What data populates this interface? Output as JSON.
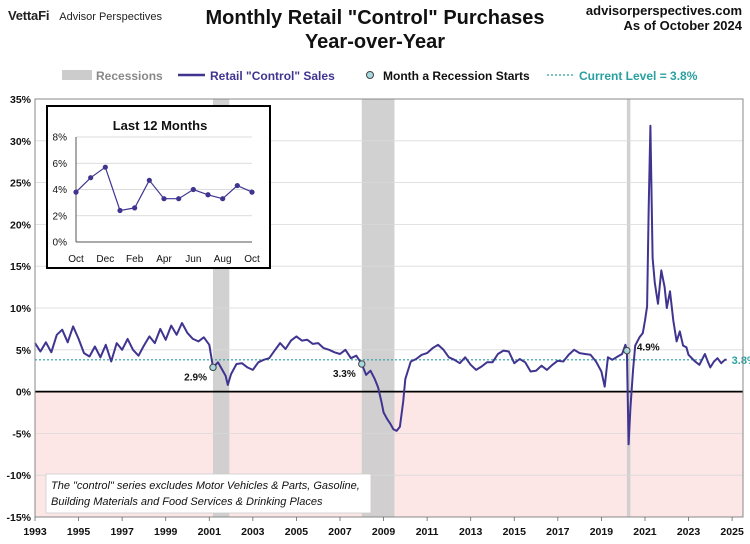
{
  "header": {
    "logo": "VettaFi",
    "logo_sub": "Advisor Perspectives",
    "title_line1": "Monthly Retail \"Control\" Purchases",
    "title_line2": "Year-over-Year",
    "site": "advisorperspectives.com",
    "asof": "As of October 2024"
  },
  "legend": {
    "recessions": "Recessions",
    "series": "Retail \"Control\" Sales",
    "recession_start": "Month a Recession Starts",
    "current": "Current Level = 3.8%"
  },
  "colors": {
    "line": "#3f3590",
    "recession": "#cccccc",
    "current": "#2aa0a0",
    "negative_band": "#fde6e6",
    "marker_fill": "#a8d8e0"
  },
  "note": {
    "line1": "The \"control\" series excludes Motor Vehicles & Parts, Gasoline,",
    "line2": "Building Materials and Food Services & Drinking Places"
  },
  "chart_data": [
    {
      "type": "line",
      "title": "",
      "xlabel": "",
      "ylabel": "",
      "xlim": [
        1993,
        2025.5
      ],
      "ylim": [
        -15,
        35
      ],
      "y_ticks": [
        -15,
        -10,
        -5,
        0,
        5,
        10,
        15,
        20,
        25,
        30,
        35
      ],
      "y_tick_labels": [
        "-15%",
        "-10%",
        "-5%",
        "0%",
        "5%",
        "10%",
        "15%",
        "20%",
        "25%",
        "30%",
        "35%"
      ],
      "x_ticks": [
        1993,
        1995,
        1997,
        1999,
        2001,
        2003,
        2005,
        2007,
        2009,
        2011,
        2013,
        2015,
        2017,
        2019,
        2021,
        2023,
        2025
      ],
      "x_tick_labels": [
        "1993",
        "1995",
        "1997",
        "1999",
        "2001",
        "2003",
        "2005",
        "2007",
        "2009",
        "2011",
        "2013",
        "2015",
        "2017",
        "2019",
        "2021",
        "2023",
        "2025"
      ],
      "recessions": [
        [
          2001.17,
          2001.92
        ],
        [
          2008.0,
          2009.5
        ],
        [
          2020.17,
          2020.33
        ]
      ],
      "recession_starts": [
        {
          "x": 2001.17,
          "y": 2.9,
          "label": "2.9%"
        },
        {
          "x": 2008.0,
          "y": 3.3,
          "label": "3.3%"
        },
        {
          "x": 2020.17,
          "y": 4.9,
          "label": "4.9%"
        }
      ],
      "current_level": {
        "value": 3.8,
        "label": "3.8%"
      },
      "series": [
        {
          "name": "Retail \"Control\" Sales",
          "x": [
            1993.0,
            1993.25,
            1993.5,
            1993.75,
            1994.0,
            1994.25,
            1994.5,
            1994.75,
            1995.0,
            1995.25,
            1995.5,
            1995.75,
            1996.0,
            1996.25,
            1996.5,
            1996.75,
            1997.0,
            1997.25,
            1997.5,
            1997.75,
            1998.0,
            1998.25,
            1998.5,
            1998.75,
            1999.0,
            1999.25,
            1999.5,
            1999.75,
            2000.0,
            2000.25,
            2000.5,
            2000.75,
            2001.0,
            2001.17,
            2001.4,
            2001.6,
            2001.75,
            2001.85,
            2002.0,
            2002.25,
            2002.5,
            2002.75,
            2003.0,
            2003.25,
            2003.5,
            2003.75,
            2004.0,
            2004.25,
            2004.5,
            2004.75,
            2005.0,
            2005.25,
            2005.5,
            2005.75,
            2006.0,
            2006.25,
            2006.5,
            2006.75,
            2007.0,
            2007.25,
            2007.5,
            2007.75,
            2008.0,
            2008.2,
            2008.4,
            2008.6,
            2008.75,
            2008.9,
            2009.0,
            2009.15,
            2009.3,
            2009.45,
            2009.6,
            2009.75,
            2009.9,
            2010.0,
            2010.25,
            2010.5,
            2010.75,
            2011.0,
            2011.25,
            2011.5,
            2011.75,
            2012.0,
            2012.25,
            2012.5,
            2012.75,
            2013.0,
            2013.25,
            2013.5,
            2013.75,
            2014.0,
            2014.25,
            2014.5,
            2014.75,
            2015.0,
            2015.25,
            2015.5,
            2015.75,
            2016.0,
            2016.25,
            2016.5,
            2016.75,
            2017.0,
            2017.25,
            2017.5,
            2017.75,
            2018.0,
            2018.25,
            2018.5,
            2018.75,
            2019.0,
            2019.15,
            2019.3,
            2019.5,
            2019.75,
            2019.95,
            2020.1,
            2020.17,
            2020.25,
            2020.33,
            2020.45,
            2020.55,
            2020.75,
            2020.9,
            2021.0,
            2021.1,
            2021.17,
            2021.25,
            2021.35,
            2021.45,
            2021.6,
            2021.75,
            2021.9,
            2022.0,
            2022.15,
            2022.3,
            2022.45,
            2022.6,
            2022.75,
            2022.9,
            2023.0,
            2023.15,
            2023.3,
            2023.5,
            2023.75,
            2023.9,
            2024.0,
            2024.17,
            2024.33,
            2024.5,
            2024.67,
            2024.75
          ],
          "values": [
            5.8,
            4.8,
            5.9,
            4.7,
            6.8,
            7.4,
            5.9,
            7.8,
            6.3,
            4.6,
            4.2,
            5.4,
            4.1,
            5.6,
            3.6,
            5.8,
            5.0,
            6.3,
            5.0,
            4.3,
            5.5,
            6.6,
            5.8,
            7.5,
            6.2,
            7.9,
            6.8,
            8.2,
            7.0,
            6.3,
            6.0,
            6.5,
            5.6,
            2.9,
            3.5,
            2.6,
            1.9,
            0.8,
            2.1,
            3.3,
            3.4,
            2.9,
            2.6,
            3.5,
            3.8,
            4.0,
            4.9,
            5.8,
            5.1,
            6.1,
            6.6,
            6.1,
            6.2,
            5.7,
            5.8,
            5.2,
            5.0,
            4.7,
            4.5,
            5.0,
            4.0,
            4.3,
            3.3,
            2.0,
            2.5,
            1.5,
            0.5,
            -1.2,
            -2.5,
            -3.2,
            -3.8,
            -4.5,
            -4.7,
            -4.2,
            -1.2,
            1.5,
            3.6,
            3.9,
            4.4,
            4.6,
            5.2,
            5.6,
            5.0,
            4.1,
            3.8,
            3.4,
            4.1,
            3.2,
            2.6,
            3.0,
            3.5,
            3.5,
            4.5,
            4.9,
            4.8,
            3.4,
            3.9,
            3.5,
            2.4,
            2.5,
            3.1,
            2.6,
            3.2,
            3.7,
            3.6,
            4.4,
            5.0,
            4.6,
            4.5,
            4.4,
            3.6,
            2.4,
            0.6,
            4.1,
            3.8,
            4.2,
            4.5,
            5.6,
            4.9,
            -6.3,
            -2.0,
            2.5,
            5.5,
            6.5,
            7.0,
            8.5,
            10.2,
            22.0,
            31.8,
            16.0,
            13.0,
            10.5,
            14.5,
            12.5,
            10.0,
            12.0,
            8.5,
            6.0,
            7.2,
            5.5,
            5.3,
            4.4,
            4.0,
            3.6,
            3.2,
            4.5,
            3.5,
            2.9,
            3.6,
            4.0,
            3.4,
            3.8,
            3.8
          ]
        }
      ]
    },
    {
      "type": "line",
      "title": "Last 12 Months",
      "xlabel": "",
      "ylabel": "",
      "ylim": [
        0,
        8
      ],
      "y_ticks": [
        0,
        2,
        4,
        6,
        8
      ],
      "y_tick_labels": [
        "0%",
        "2%",
        "4%",
        "6%",
        "8%"
      ],
      "categories": [
        "Oct",
        "Nov",
        "Dec",
        "Jan",
        "Feb",
        "Mar",
        "Apr",
        "May",
        "Jun",
        "Jul",
        "Aug",
        "Sep",
        "Oct"
      ],
      "x_tick_labels": [
        "Oct",
        "Dec",
        "Feb",
        "Apr",
        "Jun",
        "Aug",
        "Oct"
      ],
      "series": [
        {
          "name": "Retail \"Control\" Sales",
          "values": [
            3.8,
            4.9,
            5.7,
            2.4,
            2.6,
            4.7,
            3.3,
            3.3,
            4.0,
            3.6,
            3.3,
            4.3,
            3.8
          ]
        }
      ]
    }
  ]
}
